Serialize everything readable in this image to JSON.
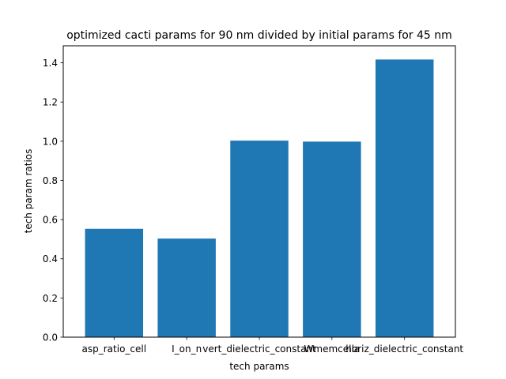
{
  "chart_data": {
    "type": "bar",
    "title": "optimized cacti params for 90 nm divided by initial params for 45 nm",
    "xlabel": "tech params",
    "ylabel": "tech param ratios",
    "categories": [
      "asp_ratio_cell",
      "I_on_n",
      "vert_dielectric_constant",
      "Wmemcella",
      "horiz_dielectric_constant"
    ],
    "values": [
      0.553,
      0.503,
      1.003,
      0.998,
      1.417
    ],
    "ylim": [
      0,
      1.487
    ],
    "yticks": [
      0.0,
      0.2,
      0.4,
      0.6,
      0.8,
      1.0,
      1.2,
      1.4
    ],
    "ytick_labels": [
      "0.0",
      "0.2",
      "0.4",
      "0.6",
      "0.8",
      "1.0",
      "1.2",
      "1.4"
    ],
    "bar_color": "#1f77b4",
    "grid": false,
    "legend": "none"
  }
}
